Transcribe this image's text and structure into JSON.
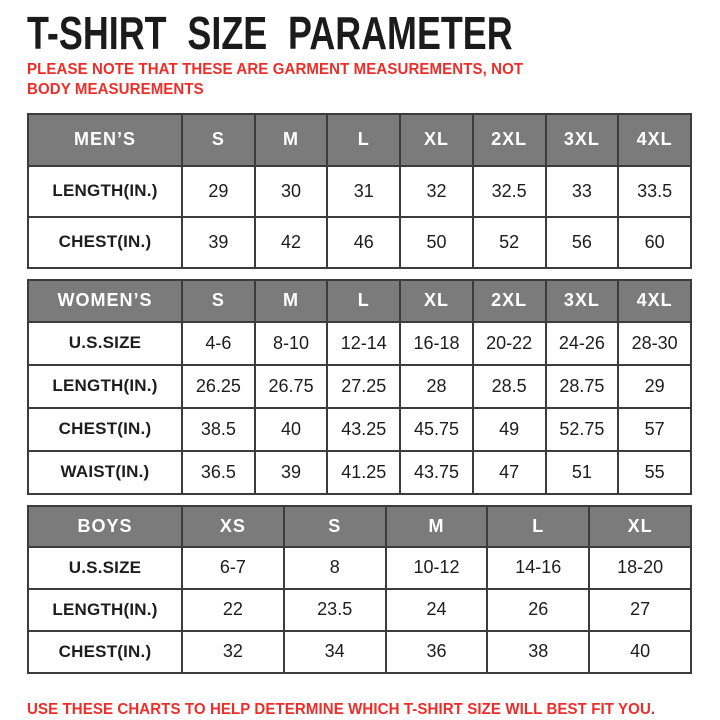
{
  "page": {
    "title": "T-SHIRT SIZE PARAMETER",
    "note": "PLEASE NOTE THAT THESE ARE GARMENT MEASUREMENTS, NOT BODY MEASUREMENTS",
    "footer": "USE THESE CHARTS TO HELP DETERMINE WHICH T-SHIRT SIZE WILL BEST FIT YOU."
  },
  "colors": {
    "header_bg": "#7b7b7b",
    "header_text": "#ffffff",
    "table_border": "#3c3c3c",
    "body_text": "#1d1d1d",
    "accent_red": "#ee2d28",
    "title_text": "#1b1b1b"
  },
  "tables": [
    {
      "id": "mens",
      "header": [
        "MEN’S",
        "S",
        "M",
        "L",
        "XL",
        "2XL",
        "3XL",
        "4XL"
      ],
      "rows": [
        {
          "label": "LENGTH(IN.)",
          "values": [
            "29",
            "30",
            "31",
            "32",
            "32.5",
            "33",
            "33.5"
          ]
        },
        {
          "label": "CHEST(IN.)",
          "values": [
            "39",
            "42",
            "46",
            "50",
            "52",
            "56",
            "60"
          ]
        }
      ]
    },
    {
      "id": "womens",
      "header": [
        "WOMEN’S",
        "S",
        "M",
        "L",
        "XL",
        "2XL",
        "3XL",
        "4XL"
      ],
      "rows": [
        {
          "label": "U.S.SIZE",
          "values": [
            "4-6",
            "8-10",
            "12-14",
            "16-18",
            "20-22",
            "24-26",
            "28-30"
          ]
        },
        {
          "label": "LENGTH(IN.)",
          "values": [
            "26.25",
            "26.75",
            "27.25",
            "28",
            "28.5",
            "28.75",
            "29"
          ]
        },
        {
          "label": "CHEST(IN.)",
          "values": [
            "38.5",
            "40",
            "43.25",
            "45.75",
            "49",
            "52.75",
            "57"
          ]
        },
        {
          "label": "WAIST(IN.)",
          "values": [
            "36.5",
            "39",
            "41.25",
            "43.75",
            "47",
            "51",
            "55"
          ]
        }
      ]
    },
    {
      "id": "boys",
      "header": [
        "BOYS",
        "XS",
        "S",
        "M",
        "L",
        "XL"
      ],
      "rows": [
        {
          "label": "U.S.SIZE",
          "values": [
            "6-7",
            "8",
            "10-12",
            "14-16",
            "18-20"
          ]
        },
        {
          "label": "LENGTH(IN.)",
          "values": [
            "22",
            "23.5",
            "24",
            "26",
            "27"
          ]
        },
        {
          "label": "CHEST(IN.)",
          "values": [
            "32",
            "34",
            "36",
            "38",
            "40"
          ]
        }
      ]
    }
  ],
  "chart_data": [
    {
      "type": "table",
      "title": "MEN’S",
      "columns": [
        "MEN’S",
        "S",
        "M",
        "L",
        "XL",
        "2XL",
        "3XL",
        "4XL"
      ],
      "rows": [
        [
          "LENGTH(IN.)",
          29,
          30,
          31,
          32,
          32.5,
          33,
          33.5
        ],
        [
          "CHEST(IN.)",
          39,
          42,
          46,
          50,
          52,
          56,
          60
        ]
      ]
    },
    {
      "type": "table",
      "title": "WOMEN’S",
      "columns": [
        "WOMEN’S",
        "S",
        "M",
        "L",
        "XL",
        "2XL",
        "3XL",
        "4XL"
      ],
      "rows": [
        [
          "U.S.SIZE",
          "4-6",
          "8-10",
          "12-14",
          "16-18",
          "20-22",
          "24-26",
          "28-30"
        ],
        [
          "LENGTH(IN.)",
          26.25,
          26.75,
          27.25,
          28,
          28.5,
          28.75,
          29
        ],
        [
          "CHEST(IN.)",
          38.5,
          40,
          43.25,
          45.75,
          49,
          52.75,
          57
        ],
        [
          "WAIST(IN.)",
          36.5,
          39,
          41.25,
          43.75,
          47,
          51,
          55
        ]
      ]
    },
    {
      "type": "table",
      "title": "BOYS",
      "columns": [
        "BOYS",
        "XS",
        "S",
        "M",
        "L",
        "XL"
      ],
      "rows": [
        [
          "U.S.SIZE",
          "6-7",
          "8",
          "10-12",
          "14-16",
          "18-20"
        ],
        [
          "LENGTH(IN.)",
          22,
          23.5,
          24,
          26,
          27
        ],
        [
          "CHEST(IN.)",
          32,
          34,
          36,
          38,
          40
        ]
      ]
    }
  ]
}
